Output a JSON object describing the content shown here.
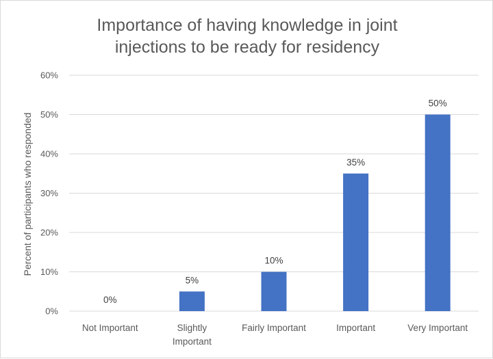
{
  "chart_data": {
    "type": "bar",
    "title": "Importance of having knowledge in joint injections to be ready for residency",
    "title_lines": [
      "Importance of having knowledge in joint",
      "injections to be ready for residency"
    ],
    "ylabel": "Percent of participants who responded",
    "xlabel": "",
    "categories": [
      "Not Important",
      "Slightly Important",
      "Fairly Important",
      "Important",
      "Very Important"
    ],
    "category_lines": [
      [
        "Not Important"
      ],
      [
        "Slightly",
        "Important"
      ],
      [
        "Fairly Important"
      ],
      [
        "Important"
      ],
      [
        "Very Important"
      ]
    ],
    "values": [
      0,
      5,
      10,
      35,
      50
    ],
    "data_labels": [
      "0%",
      "5%",
      "10%",
      "35%",
      "50%"
    ],
    "ylim": [
      0,
      60
    ],
    "yticks": [
      0,
      10,
      20,
      30,
      40,
      50,
      60
    ],
    "ytick_labels": [
      "0%",
      "10%",
      "20%",
      "30%",
      "40%",
      "50%",
      "60%"
    ],
    "grid": true,
    "legend": "none",
    "bar_color": "#4472c4",
    "grid_color": "#d9d9d9"
  }
}
